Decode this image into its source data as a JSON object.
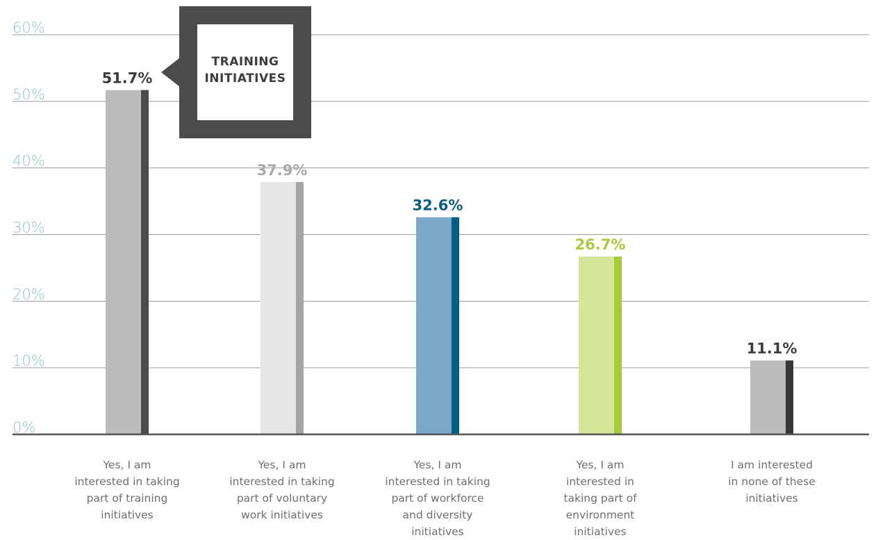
{
  "chart_data": {
    "type": "bar",
    "categories": [
      "Yes, I am\ninterested in taking\npart of training\ninitiatives",
      "Yes, I am\ninterested in taking\npart of voluntary\nwork initiatives",
      "Yes, I am\ninterested in taking\npart of workforce\nand diversity\ninitiatives",
      "Yes, I am\ninterested in\ntaking part of\nenvironment\ninitiatives",
      "I am interested\nin none of these\ninitiatives"
    ],
    "values": [
      51.7,
      37.9,
      32.6,
      26.7,
      11.1
    ],
    "value_labels": [
      "51.7%",
      "37.9%",
      "32.6%",
      "26.7%",
      "11.1%"
    ],
    "y_ticks": [
      0,
      10,
      20,
      30,
      40,
      50,
      60
    ],
    "y_tick_labels": [
      "0%",
      "10%",
      "20%",
      "30%",
      "40%",
      "50%",
      "60%"
    ],
    "ylim": [
      0,
      60
    ],
    "grid": true,
    "legend": "none",
    "colors": {
      "bar_fill": [
        "#bcbcbe",
        "#e6e6e6",
        "#7aa8c6",
        "#d5e59a",
        "#bcbcbe"
      ],
      "bar_edge": [
        "#4b4b4d",
        "#a5a5a5",
        "#055f82",
        "#a5cd39",
        "#3a3537"
      ],
      "value_label": [
        "#3c3c3e",
        "#a9a9a9",
        "#0b5d82",
        "#a8cd3a",
        "#3c3c3e"
      ],
      "tick_label": "#8fc0d6",
      "grid": "#9a9a9a",
      "axis": "#555555"
    }
  },
  "callout": {
    "text": "TRAINING\nINITIATIVES"
  }
}
